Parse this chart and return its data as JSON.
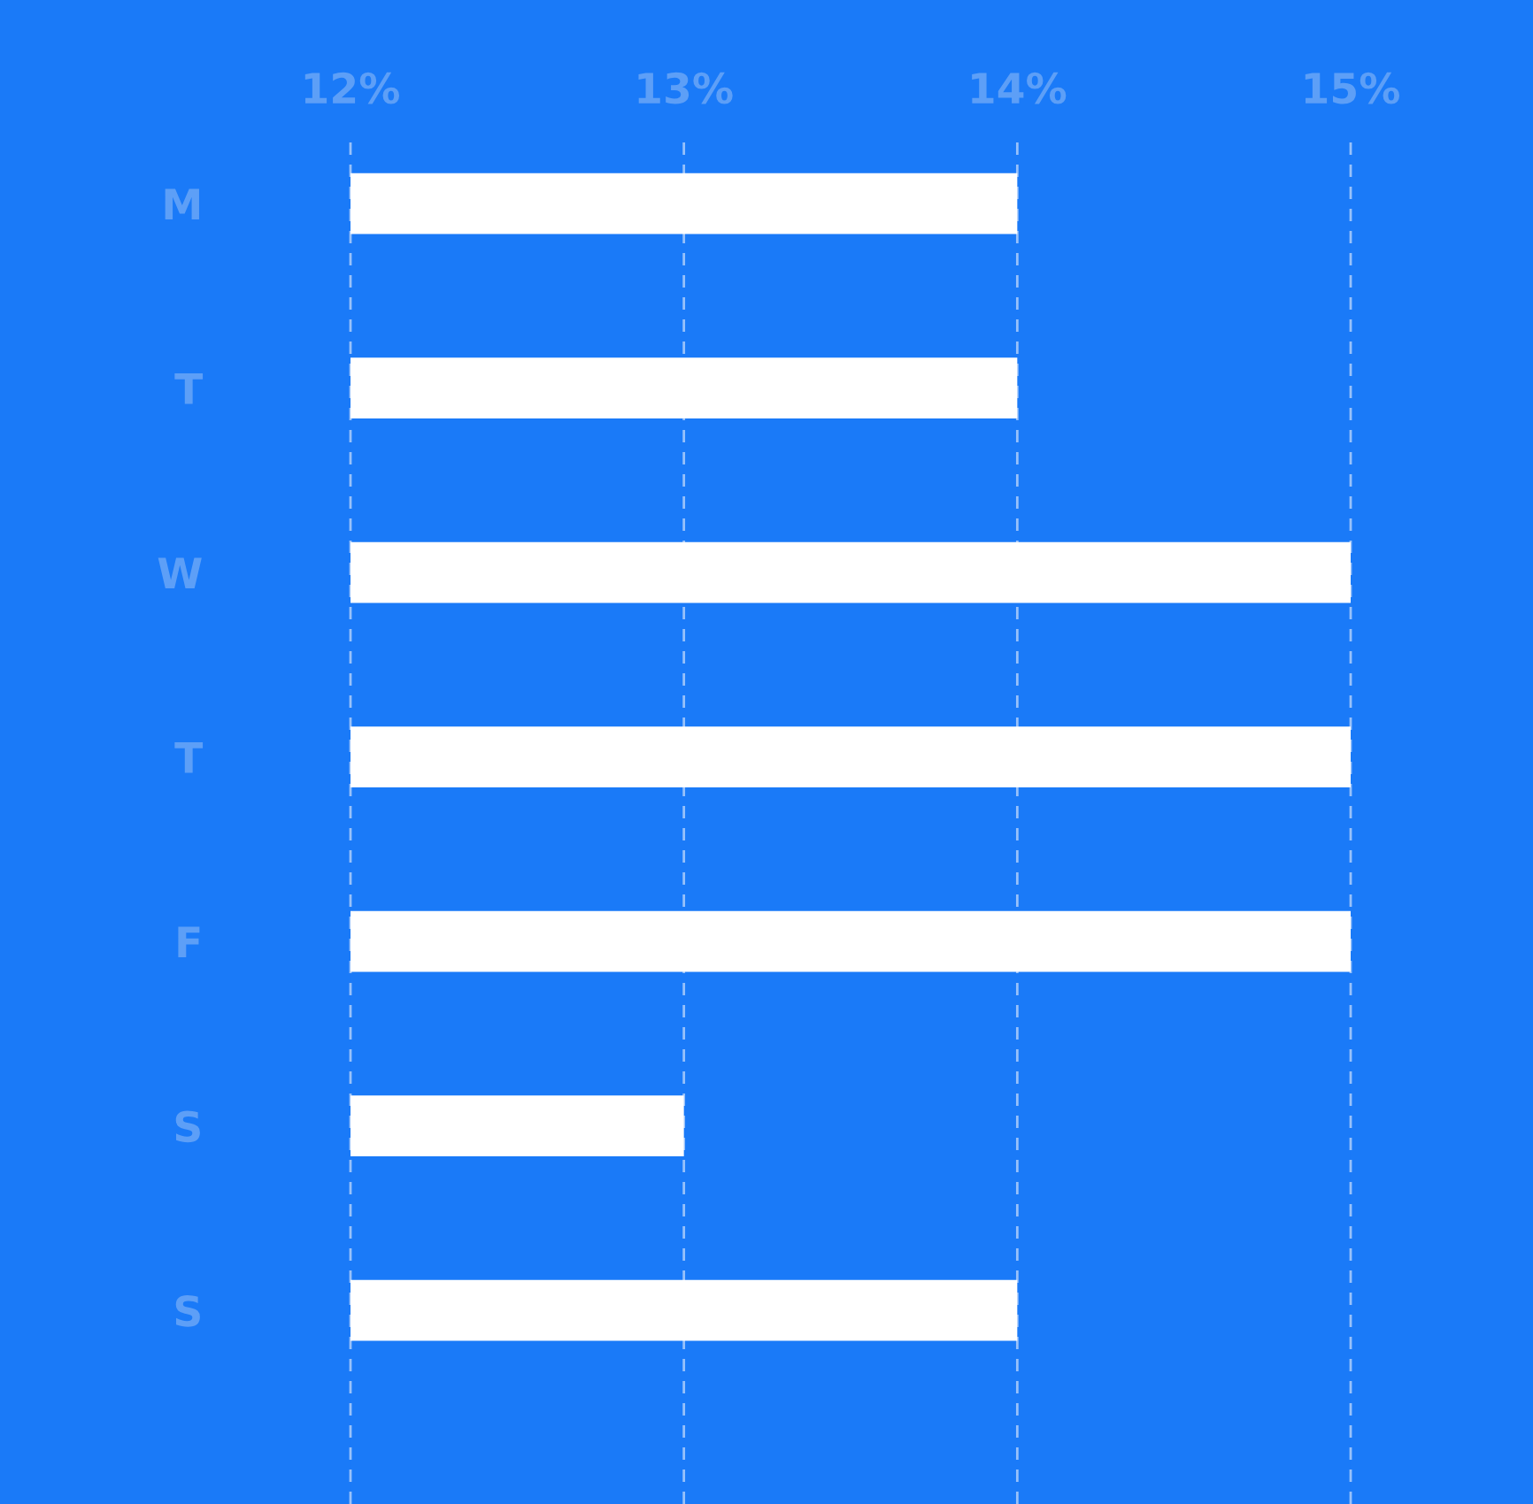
{
  "chart_data": {
    "type": "bar",
    "orientation": "horizontal",
    "categories": [
      "M",
      "T",
      "W",
      "T",
      "F",
      "S",
      "S"
    ],
    "values": [
      14,
      14,
      15,
      15,
      15,
      13,
      14
    ],
    "color": "#ffffff",
    "xlim": [
      12,
      15
    ],
    "xticks": [
      {
        "value": 12,
        "label": "12%"
      },
      {
        "value": 13,
        "label": "13%"
      },
      {
        "value": 14,
        "label": "14%"
      },
      {
        "value": 15,
        "label": "15%"
      }
    ],
    "grid": "x",
    "legend": false
  }
}
